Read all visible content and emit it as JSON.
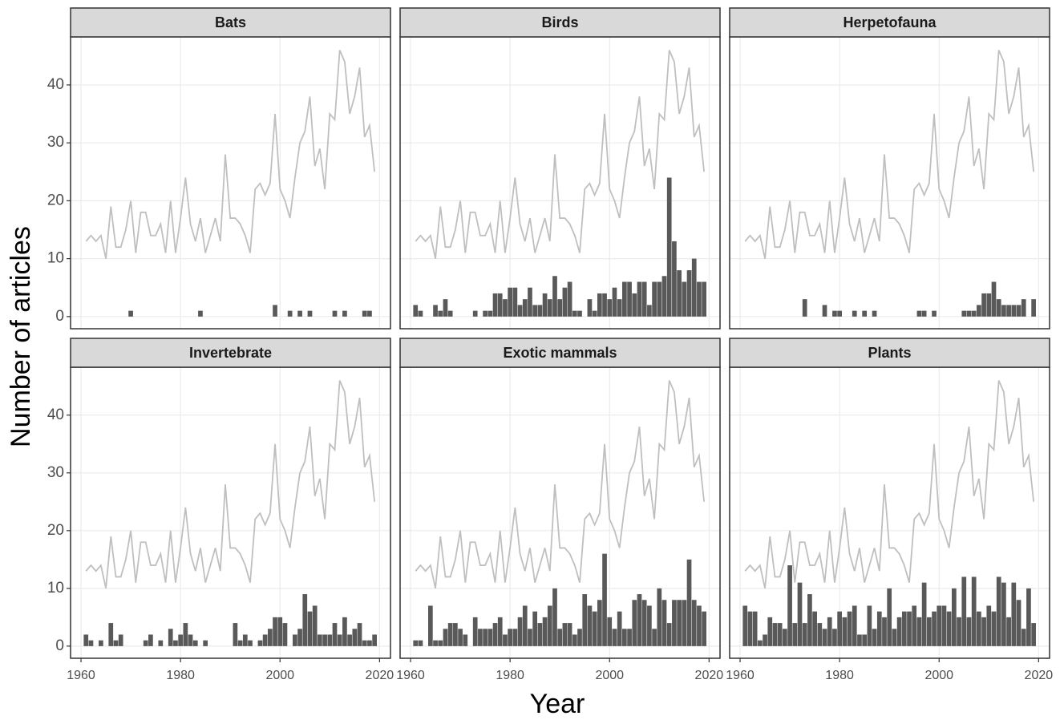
{
  "chart_data": {
    "type": "faceted-bar-line",
    "x_label": "Year",
    "y_label": "Number of articles",
    "x": [
      1961,
      1962,
      1963,
      1964,
      1965,
      1966,
      1967,
      1968,
      1969,
      1970,
      1971,
      1972,
      1973,
      1974,
      1975,
      1976,
      1977,
      1978,
      1979,
      1980,
      1981,
      1982,
      1983,
      1984,
      1985,
      1986,
      1987,
      1988,
      1989,
      1990,
      1991,
      1992,
      1993,
      1994,
      1995,
      1996,
      1997,
      1998,
      1999,
      2000,
      2001,
      2002,
      2003,
      2004,
      2005,
      2006,
      2007,
      2008,
      2009,
      2010,
      2011,
      2012,
      2013,
      2014,
      2015,
      2016,
      2017,
      2018,
      2019
    ],
    "total": {
      "color": "#bfbfbf",
      "values": [
        13,
        14,
        13,
        14,
        10,
        19,
        12,
        12,
        15,
        20,
        11,
        18,
        18,
        14,
        14,
        16,
        11,
        20,
        11,
        17,
        24,
        16,
        13,
        17,
        11,
        14,
        17,
        13,
        28,
        17,
        17,
        16,
        14,
        11,
        22,
        23,
        21,
        23,
        35,
        22,
        20,
        17,
        24,
        30,
        32,
        38,
        26,
        29,
        22,
        35,
        34,
        46,
        44,
        35,
        38,
        43,
        31,
        33,
        25
      ]
    },
    "bar_color": "#595959",
    "panels": [
      {
        "title": "Bats",
        "values": [
          0,
          0,
          0,
          0,
          0,
          0,
          0,
          0,
          0,
          1,
          0,
          0,
          0,
          0,
          0,
          0,
          0,
          0,
          0,
          0,
          0,
          0,
          0,
          1,
          0,
          0,
          0,
          0,
          0,
          0,
          0,
          0,
          0,
          0,
          0,
          0,
          0,
          0,
          2,
          0,
          0,
          1,
          0,
          1,
          0,
          1,
          0,
          0,
          0,
          0,
          1,
          0,
          1,
          0,
          0,
          0,
          1,
          1,
          0
        ]
      },
      {
        "title": "Birds",
        "values": [
          2,
          1,
          0,
          0,
          2,
          1,
          3,
          1,
          0,
          0,
          0,
          0,
          1,
          0,
          1,
          1,
          4,
          4,
          3,
          5,
          5,
          2,
          3,
          5,
          2,
          2,
          4,
          3,
          7,
          3,
          5,
          6,
          1,
          1,
          0,
          3,
          1,
          4,
          4,
          3,
          5,
          3,
          6,
          6,
          4,
          6,
          6,
          2,
          6,
          6,
          7,
          24,
          13,
          8,
          6,
          8,
          10,
          6,
          6
        ]
      },
      {
        "title": "Herpetofauna",
        "values": [
          0,
          0,
          0,
          0,
          0,
          0,
          0,
          0,
          0,
          0,
          0,
          0,
          3,
          0,
          0,
          0,
          2,
          0,
          1,
          1,
          0,
          0,
          1,
          0,
          1,
          0,
          1,
          0,
          0,
          0,
          0,
          0,
          0,
          0,
          0,
          1,
          1,
          0,
          1,
          0,
          0,
          0,
          0,
          0,
          1,
          1,
          1,
          2,
          4,
          4,
          6,
          3,
          2,
          2,
          2,
          2,
          3,
          0,
          3
        ]
      },
      {
        "title": "Invertebrate",
        "values": [
          2,
          1,
          0,
          1,
          0,
          4,
          1,
          2,
          0,
          0,
          0,
          0,
          1,
          2,
          0,
          1,
          0,
          3,
          1,
          2,
          4,
          2,
          1,
          0,
          1,
          0,
          0,
          0,
          0,
          0,
          4,
          1,
          2,
          1,
          0,
          1,
          2,
          3,
          5,
          5,
          4,
          0,
          2,
          3,
          9,
          6,
          7,
          2,
          2,
          2,
          4,
          2,
          5,
          2,
          3,
          4,
          1,
          1,
          2
        ]
      },
      {
        "title": "Exotic mammals",
        "values": [
          1,
          1,
          0,
          7,
          1,
          1,
          3,
          4,
          4,
          3,
          2,
          0,
          5,
          3,
          3,
          3,
          4,
          5,
          2,
          3,
          3,
          5,
          7,
          3,
          6,
          4,
          5,
          7,
          10,
          3,
          4,
          4,
          2,
          3,
          9,
          7,
          6,
          8,
          16,
          5,
          3,
          6,
          3,
          3,
          8,
          9,
          8,
          7,
          3,
          10,
          8,
          4,
          8,
          8,
          8,
          15,
          8,
          7,
          6
        ]
      },
      {
        "title": "Plants",
        "values": [
          7,
          6,
          6,
          1,
          2,
          5,
          4,
          4,
          3,
          14,
          4,
          11,
          4,
          9,
          6,
          4,
          3,
          5,
          3,
          6,
          5,
          6,
          7,
          2,
          2,
          7,
          3,
          6,
          5,
          10,
          3,
          5,
          6,
          6,
          7,
          5,
          11,
          5,
          6,
          7,
          7,
          6,
          10,
          5,
          12,
          5,
          12,
          6,
          5,
          7,
          6,
          12,
          11,
          5,
          11,
          8,
          3,
          10,
          4
        ]
      }
    ],
    "xlim": [
      1957.9,
      2022.2
    ],
    "xticks": [
      1960,
      1980,
      2000,
      2020
    ],
    "ylim": [
      -2.1,
      48.3
    ],
    "yticks": [
      0,
      10,
      20,
      30,
      40
    ],
    "grid": true
  }
}
